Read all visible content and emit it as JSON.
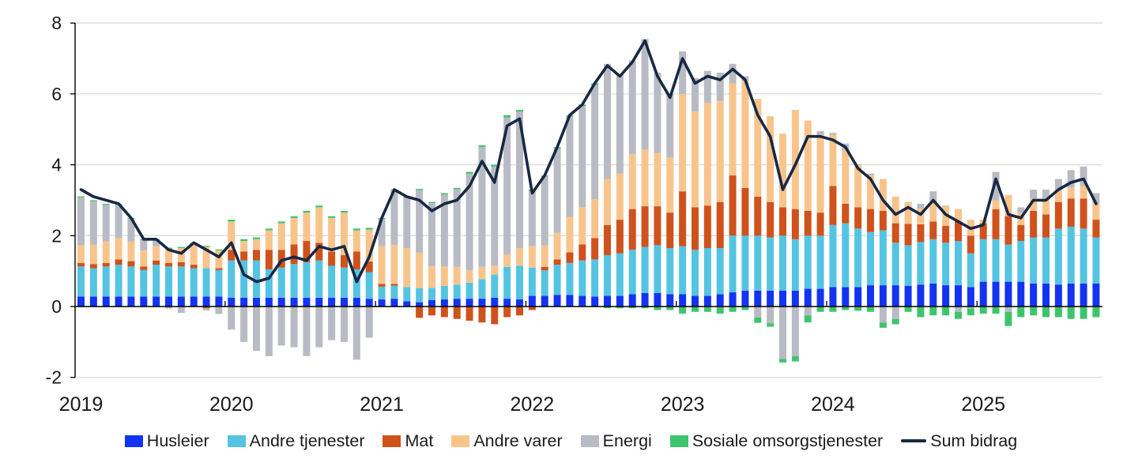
{
  "chart_data": {
    "type": "stacked-bar-line",
    "title": "",
    "x_start": "2019-01",
    "x_end": "2025-10",
    "x_tick_labels": [
      "2019",
      "2020",
      "2021",
      "2022",
      "2023",
      "2024",
      "2025"
    ],
    "months_total": 82,
    "ylim": [
      -2,
      8
    ],
    "yticks": [
      8,
      6,
      4,
      2,
      0,
      -2
    ],
    "grid": "horizontal",
    "legend_position": "bottom-center",
    "colors": {
      "grid": "#dcdcdc",
      "axis": "#000000",
      "text": "#1a1a1a",
      "background": "#ffffff"
    },
    "series": [
      {
        "name": "Husleier",
        "type": "bar",
        "color": "#1433f0",
        "values": [
          0.28,
          0.28,
          0.28,
          0.28,
          0.28,
          0.28,
          0.28,
          0.28,
          0.28,
          0.28,
          0.28,
          0.28,
          0.25,
          0.25,
          0.25,
          0.25,
          0.25,
          0.25,
          0.25,
          0.25,
          0.25,
          0.25,
          0.25,
          0.22,
          0.2,
          0.22,
          0.15,
          0.12,
          0.18,
          0.2,
          0.22,
          0.22,
          0.22,
          0.25,
          0.22,
          0.2,
          0.3,
          0.3,
          0.33,
          0.33,
          0.3,
          0.28,
          0.3,
          0.3,
          0.35,
          0.38,
          0.38,
          0.35,
          0.35,
          0.3,
          0.3,
          0.35,
          0.4,
          0.45,
          0.45,
          0.45,
          0.45,
          0.45,
          0.5,
          0.5,
          0.55,
          0.55,
          0.55,
          0.6,
          0.6,
          0.6,
          0.58,
          0.62,
          0.65,
          0.6,
          0.6,
          0.55,
          0.7,
          0.7,
          0.7,
          0.7,
          0.65,
          0.65,
          0.62,
          0.65,
          0.65,
          0.65
        ]
      },
      {
        "name": "Andre tjenester",
        "type": "bar",
        "color": "#54c4e2",
        "values": [
          0.85,
          0.8,
          0.85,
          0.9,
          0.85,
          0.75,
          0.9,
          0.85,
          0.85,
          0.8,
          0.8,
          0.75,
          1.05,
          1.05,
          1.05,
          0.8,
          0.85,
          0.95,
          1.0,
          1.05,
          0.9,
          0.85,
          0.8,
          0.75,
          0.36,
          0.37,
          0.4,
          0.4,
          0.35,
          0.38,
          0.4,
          0.45,
          0.55,
          0.65,
          0.9,
          0.95,
          0.8,
          0.72,
          0.85,
          0.9,
          1.0,
          1.05,
          1.15,
          1.2,
          1.25,
          1.3,
          1.35,
          1.3,
          1.35,
          1.3,
          1.35,
          1.3,
          1.6,
          1.55,
          1.55,
          1.5,
          1.55,
          1.45,
          1.5,
          1.5,
          1.75,
          1.8,
          1.65,
          1.5,
          1.55,
          1.2,
          1.15,
          1.2,
          1.25,
          1.2,
          1.25,
          0.95,
          1.2,
          1.2,
          1.05,
          1.15,
          1.3,
          1.3,
          1.58,
          1.6,
          1.55,
          1.3
        ]
      },
      {
        "name": "Mat",
        "type": "bar",
        "color": "#cf521c",
        "values": [
          0.1,
          0.12,
          0.1,
          0.15,
          0.15,
          0.1,
          0.12,
          0.1,
          0.12,
          0.1,
          -0.05,
          0.05,
          0.3,
          0.25,
          0.3,
          0.55,
          0.5,
          0.55,
          0.6,
          0.5,
          0.4,
          0.35,
          0.5,
          0.3,
          0.08,
          0.05,
          0.0,
          -0.32,
          -0.25,
          -0.3,
          -0.35,
          -0.4,
          -0.45,
          -0.5,
          -0.3,
          -0.25,
          -0.1,
          0.1,
          0.15,
          0.3,
          0.45,
          0.6,
          0.85,
          0.95,
          1.15,
          1.15,
          1.1,
          1.0,
          1.55,
          1.2,
          1.2,
          1.3,
          1.7,
          1.35,
          1.1,
          1.0,
          0.8,
          0.85,
          0.7,
          0.65,
          1.1,
          0.55,
          0.6,
          0.65,
          0.55,
          0.55,
          0.6,
          0.5,
          0.5,
          0.48,
          0.55,
          0.5,
          0.45,
          0.85,
          0.8,
          0.45,
          0.75,
          0.65,
          0.75,
          0.8,
          0.85,
          0.5
        ]
      },
      {
        "name": "Andre varer",
        "type": "bar",
        "color": "#f8c48c",
        "values": [
          0.5,
          0.55,
          0.6,
          0.6,
          0.55,
          0.45,
          0.4,
          0.4,
          0.4,
          0.55,
          0.6,
          0.5,
          0.8,
          0.3,
          0.3,
          0.55,
          0.75,
          0.75,
          0.8,
          1.0,
          0.95,
          1.2,
          0.6,
          0.9,
          1.06,
          1.1,
          1.1,
          1.0,
          0.6,
          0.55,
          0.5,
          0.35,
          0.35,
          0.25,
          0.35,
          0.5,
          0.6,
          0.6,
          0.75,
          1.0,
          1.05,
          1.1,
          1.3,
          1.3,
          1.55,
          1.6,
          1.5,
          1.55,
          2.75,
          2.7,
          2.9,
          2.85,
          2.6,
          3.0,
          2.76,
          2.42,
          2.08,
          2.8,
          2.55,
          2.2,
          1.45,
          1.5,
          1.2,
          0.95,
          0.9,
          0.75,
          0.6,
          0.45,
          0.55,
          0.56,
          0.35,
          0.45,
          0.1,
          0.25,
          0.6,
          0.35,
          0.35,
          0.45,
          0.35,
          0.3,
          0.35,
          0.45
        ]
      },
      {
        "name": "Energi",
        "type": "bar",
        "color": "#b8bbc3",
        "values": [
          1.35,
          1.22,
          1.04,
          0.94,
          0.64,
          0.29,
          0.17,
          -0.06,
          -0.18,
          0.04,
          -0.06,
          -0.21,
          -0.65,
          -1.0,
          -1.25,
          -1.4,
          -1.1,
          -1.15,
          -1.4,
          -1.15,
          -0.95,
          -1.0,
          -1.5,
          -0.88,
          0.77,
          1.53,
          1.42,
          1.77,
          1.79,
          2.03,
          2.19,
          2.73,
          3.38,
          2.8,
          3.87,
          3.85,
          1.56,
          1.95,
          2.38,
          2.83,
          2.86,
          3.22,
          3.25,
          2.8,
          2.65,
          3.12,
          2.27,
          1.8,
          1.2,
          0.95,
          0.9,
          0.8,
          0.55,
          0.15,
          -0.31,
          -0.47,
          -1.48,
          -1.4,
          -0.25,
          0.1,
          0.05,
          0.2,
          0.02,
          0.05,
          -0.45,
          -0.35,
          0.02,
          0.13,
          0.3,
          0.01,
          -0.15,
          -0.05,
          0.0,
          0.8,
          -0.15,
          0.15,
          0.25,
          0.25,
          0.3,
          0.5,
          0.55,
          0.3
        ]
      },
      {
        "name": "Sosiale omsorgstjenester",
        "type": "bar",
        "color": "#3ec46d",
        "values": [
          0.03,
          0.03,
          0.03,
          0.03,
          0.03,
          0.03,
          0.03,
          0.03,
          0.03,
          0.03,
          0.03,
          0.03,
          0.05,
          0.05,
          0.05,
          0.05,
          0.05,
          0.05,
          0.05,
          0.05,
          0.05,
          0.05,
          0.05,
          0.05,
          0.03,
          0.03,
          0.03,
          0.03,
          0.03,
          0.04,
          0.04,
          0.05,
          0.05,
          0.05,
          0.06,
          0.05,
          0.04,
          0.03,
          0.04,
          0.04,
          0.04,
          0.05,
          -0.05,
          -0.05,
          -0.05,
          -0.05,
          -0.1,
          -0.1,
          -0.2,
          -0.15,
          -0.15,
          -0.2,
          -0.15,
          -0.1,
          -0.15,
          -0.1,
          -0.1,
          -0.15,
          -0.2,
          -0.15,
          -0.15,
          -0.1,
          -0.12,
          -0.15,
          -0.15,
          -0.15,
          -0.15,
          -0.3,
          -0.25,
          -0.25,
          -0.2,
          -0.2,
          -0.2,
          -0.2,
          -0.4,
          -0.3,
          -0.25,
          -0.3,
          -0.3,
          -0.35,
          -0.35,
          -0.3
        ]
      },
      {
        "name": "Sum bidrag",
        "type": "line",
        "color": "#182844",
        "values": [
          3.3,
          3.1,
          3.0,
          2.9,
          2.5,
          1.9,
          1.9,
          1.6,
          1.5,
          1.8,
          1.6,
          1.4,
          1.8,
          0.9,
          0.7,
          0.8,
          1.3,
          1.4,
          1.3,
          1.7,
          1.6,
          1.7,
          0.7,
          1.4,
          2.5,
          3.3,
          3.1,
          3.0,
          2.7,
          2.9,
          3.0,
          3.4,
          4.1,
          3.5,
          5.1,
          5.3,
          3.2,
          3.7,
          4.5,
          5.4,
          5.7,
          6.3,
          6.8,
          6.5,
          6.9,
          7.5,
          6.5,
          5.9,
          7.0,
          6.3,
          6.5,
          6.4,
          6.7,
          6.4,
          5.4,
          4.8,
          3.3,
          4.0,
          4.8,
          4.8,
          4.7,
          4.5,
          3.9,
          3.6,
          3.0,
          2.6,
          2.8,
          2.6,
          3.0,
          2.6,
          2.4,
          2.2,
          2.3,
          3.6,
          2.6,
          2.5,
          3.0,
          3.0,
          3.3,
          3.5,
          3.6,
          2.9
        ]
      }
    ]
  }
}
